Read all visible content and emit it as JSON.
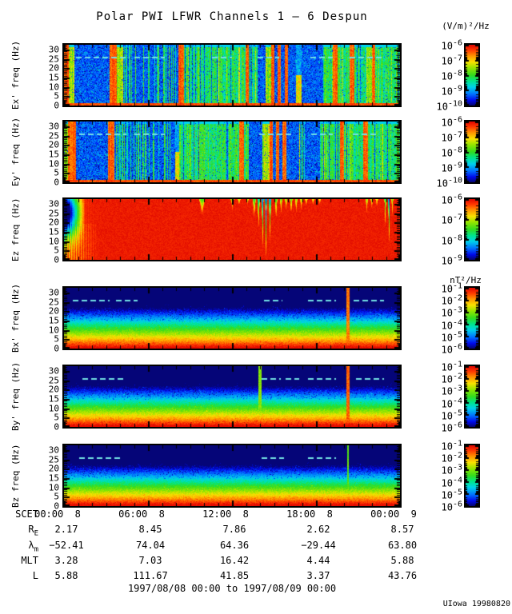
{
  "chart_data": {
    "type": "heatmap",
    "title": "Polar PWI LFWR Channels 1 — 6 Despun",
    "credit": "UIowa 19980820",
    "units": {
      "electric": "(V/m)²/Hz",
      "magnetic": "nT²/Hz"
    },
    "x_axis": {
      "label": "SCET",
      "tick_labels": [
        "00:00  8",
        "06:00  8",
        "12:00  8",
        "18:00  8",
        "00:00  9"
      ],
      "span_hours": 24,
      "minor_tick_hours": 1,
      "date_range": "1997/08/08 00:00 to 1997/08/09 00:00"
    },
    "y_axis": {
      "min": 0,
      "max": 32.5,
      "unit": "Hz",
      "tick_values": [
        0,
        5,
        10,
        15,
        20,
        25,
        30
      ]
    },
    "colorscale_top_to_bottom": [
      "#e10a00",
      "#ff3700",
      "#ff9600",
      "#fae100",
      "#32dc1e",
      "#00e68c",
      "#00d2eb",
      "#006eff",
      "#000ae6",
      "#050578"
    ],
    "noise_line_hz": 25.9,
    "panels": [
      {
        "id": "ex",
        "ylabel": "Ex' freq (Hz)",
        "kind": "e",
        "seed": 11,
        "colorbar": {
          "exponents": [
            -6,
            -7,
            -8,
            -9,
            -10
          ]
        },
        "segments": [
          [
            0,
            0.012,
            "r"
          ],
          [
            0.012,
            0.03,
            "G"
          ],
          [
            0.03,
            0.135,
            "q"
          ],
          [
            0.135,
            0.155,
            "r"
          ],
          [
            0.155,
            0.175,
            "G"
          ],
          [
            0.175,
            0.34,
            "qg"
          ],
          [
            0.34,
            0.355,
            "r"
          ],
          [
            0.355,
            0.54,
            "g"
          ],
          [
            0.54,
            0.55,
            "r"
          ],
          [
            0.55,
            0.575,
            "g"
          ],
          [
            0.575,
            0.6,
            "q"
          ],
          [
            0.6,
            0.615,
            "G"
          ],
          [
            0.615,
            0.625,
            "r"
          ],
          [
            0.625,
            0.635,
            "q"
          ],
          [
            0.635,
            0.645,
            "r"
          ],
          [
            0.645,
            0.655,
            "q"
          ],
          [
            0.655,
            0.665,
            "r"
          ],
          [
            0.665,
            0.69,
            "q"
          ],
          [
            0.69,
            0.705,
            "o"
          ],
          [
            0.705,
            0.77,
            "q"
          ],
          [
            0.77,
            0.8,
            "g"
          ],
          [
            0.8,
            0.812,
            "r"
          ],
          [
            0.812,
            0.85,
            "g"
          ],
          [
            0.85,
            0.862,
            "r"
          ],
          [
            0.862,
            0.9,
            "g"
          ],
          [
            0.9,
            0.915,
            "G"
          ],
          [
            0.915,
            0.925,
            "r"
          ],
          [
            0.925,
            1.01,
            "g"
          ]
        ],
        "dashes": [
          [
            0.035,
            0.195
          ],
          [
            0.21,
            0.3
          ],
          [
            0.44,
            0.5
          ],
          [
            0.576,
            0.64
          ],
          [
            0.733,
            0.8
          ],
          [
            0.85,
            0.95
          ]
        ]
      },
      {
        "id": "ey",
        "ylabel": "Ey' freq (Hz)",
        "kind": "e",
        "seed": 22,
        "colorbar": {
          "exponents": [
            -6,
            -7,
            -8,
            -9,
            -10
          ]
        },
        "segments": [
          [
            0,
            0.01,
            "G"
          ],
          [
            0.01,
            0.035,
            "r"
          ],
          [
            0.035,
            0.13,
            "q"
          ],
          [
            0.13,
            0.15,
            "r"
          ],
          [
            0.15,
            0.33,
            "qg"
          ],
          [
            0.33,
            0.342,
            "o"
          ],
          [
            0.342,
            0.52,
            "g"
          ],
          [
            0.52,
            0.535,
            "r"
          ],
          [
            0.535,
            0.55,
            "g"
          ],
          [
            0.55,
            0.59,
            "q"
          ],
          [
            0.59,
            0.61,
            "G"
          ],
          [
            0.61,
            0.62,
            "r"
          ],
          [
            0.62,
            0.63,
            "q"
          ],
          [
            0.63,
            0.64,
            "r"
          ],
          [
            0.64,
            0.65,
            "q"
          ],
          [
            0.65,
            0.66,
            "r"
          ],
          [
            0.66,
            0.7,
            "q"
          ],
          [
            0.7,
            0.715,
            "g"
          ],
          [
            0.715,
            0.76,
            "q"
          ],
          [
            0.76,
            0.82,
            "g"
          ],
          [
            0.82,
            0.833,
            "r"
          ],
          [
            0.833,
            0.89,
            "g"
          ],
          [
            0.89,
            0.903,
            "r"
          ],
          [
            0.903,
            1.01,
            "g"
          ]
        ],
        "dashes": [
          [
            0.045,
            0.185
          ],
          [
            0.21,
            0.3
          ],
          [
            0.58,
            0.65
          ],
          [
            0.66,
            0.68
          ],
          [
            0.735,
            0.8
          ],
          [
            0.86,
            0.93
          ]
        ]
      },
      {
        "id": "ez",
        "ylabel": "Ez freq (Hz)",
        "kind": "ez",
        "seed": 33,
        "colorbar": {
          "exponents": [
            -6,
            -7,
            -8,
            -9
          ]
        },
        "dashes": [],
        "dips": [
          [
            0.41,
            0.28,
            0.009,
            0.5
          ],
          [
            0.5,
            0.18,
            0.005,
            0.42
          ],
          [
            0.52,
            0.12,
            0.004,
            0.35
          ],
          [
            0.545,
            0.1,
            0.004,
            0.3
          ],
          [
            0.565,
            0.35,
            0.005,
            0.55
          ],
          [
            0.578,
            0.55,
            0.004,
            0.7
          ],
          [
            0.59,
            0.95,
            0.003,
            0.88
          ],
          [
            0.6,
            1,
            0.003,
            0.92
          ],
          [
            0.612,
            0.7,
            0.004,
            0.8
          ],
          [
            0.63,
            0.4,
            0.004,
            0.5
          ],
          [
            0.645,
            0.25,
            0.004,
            0.45
          ],
          [
            0.66,
            0.2,
            0.004,
            0.4
          ],
          [
            0.675,
            0.3,
            0.004,
            0.45
          ],
          [
            0.69,
            0.25,
            0.004,
            0.4
          ],
          [
            0.705,
            0.2,
            0.004,
            0.35
          ],
          [
            0.72,
            0.15,
            0.004,
            0.3
          ],
          [
            0.74,
            0.12,
            0.004,
            0.3
          ],
          [
            0.76,
            0.1,
            0.004,
            0.28
          ],
          [
            0.9,
            0.22,
            0.004,
            0.4
          ],
          [
            0.915,
            0.18,
            0.004,
            0.35
          ],
          [
            0.93,
            0.15,
            0.004,
            0.3
          ],
          [
            0.955,
            0.5,
            0.003,
            0.55
          ],
          [
            0.966,
            1,
            0.0025,
            0.95
          ],
          [
            0.976,
            0.3,
            0.003,
            0.4
          ]
        ]
      },
      {
        "id": "bx",
        "ylabel": "Bx' freq (Hz)",
        "kind": "b",
        "seed": 44,
        "colorbar": {
          "exponents": [
            -1,
            -2,
            -3,
            -4,
            -5,
            -6
          ]
        },
        "dashes": [
          [
            0.025,
            0.135
          ],
          [
            0.155,
            0.22
          ],
          [
            0.595,
            0.65
          ],
          [
            0.727,
            0.81
          ],
          [
            0.862,
            0.952
          ]
        ],
        "spikes": [
          [
            0.845,
            0.85,
            2
          ]
        ]
      },
      {
        "id": "by",
        "ylabel": "By' freq (Hz)",
        "kind": "b",
        "seed": 55,
        "colorbar": {
          "exponents": [
            -1,
            -2,
            -3,
            -4,
            -5,
            -6
          ]
        },
        "dashes": [
          [
            0.055,
            0.185
          ],
          [
            0.588,
            0.645
          ],
          [
            0.66,
            0.7
          ],
          [
            0.727,
            0.81
          ],
          [
            0.869,
            0.952
          ]
        ],
        "spikes": [
          [
            0.583,
            0.6,
            2
          ],
          [
            0.845,
            0.88,
            2
          ]
        ]
      },
      {
        "id": "bz",
        "ylabel": "Bz freq (Hz)",
        "kind": "b",
        "seed": 66,
        "colorbar": {
          "exponents": [
            -1,
            -2,
            -3,
            -4,
            -5,
            -6
          ]
        },
        "dashes": [
          [
            0.045,
            0.17
          ],
          [
            0.588,
            0.655
          ],
          [
            0.727,
            0.81
          ]
        ],
        "spikes": [
          [
            0.845,
            0.55,
            1
          ]
        ]
      }
    ],
    "ephemeris": {
      "rows": [
        {
          "label": "R",
          "sub": "E",
          "values": [
            "2.17",
            "8.45",
            "7.86",
            "2.62",
            "8.57"
          ]
        },
        {
          "label": "λ",
          "sub": "m",
          "values": [
            "−52.41",
            "74.04",
            "64.36",
            "−29.44",
            "63.80"
          ]
        },
        {
          "label": "MLT",
          "sub": "",
          "values": [
            "3.28",
            "7.03",
            "16.42",
            "4.44",
            "5.88"
          ]
        },
        {
          "label": "L",
          "sub": "",
          "values": [
            "5.88",
            "111.67",
            "41.85",
            "3.37",
            "43.76"
          ]
        }
      ]
    }
  }
}
